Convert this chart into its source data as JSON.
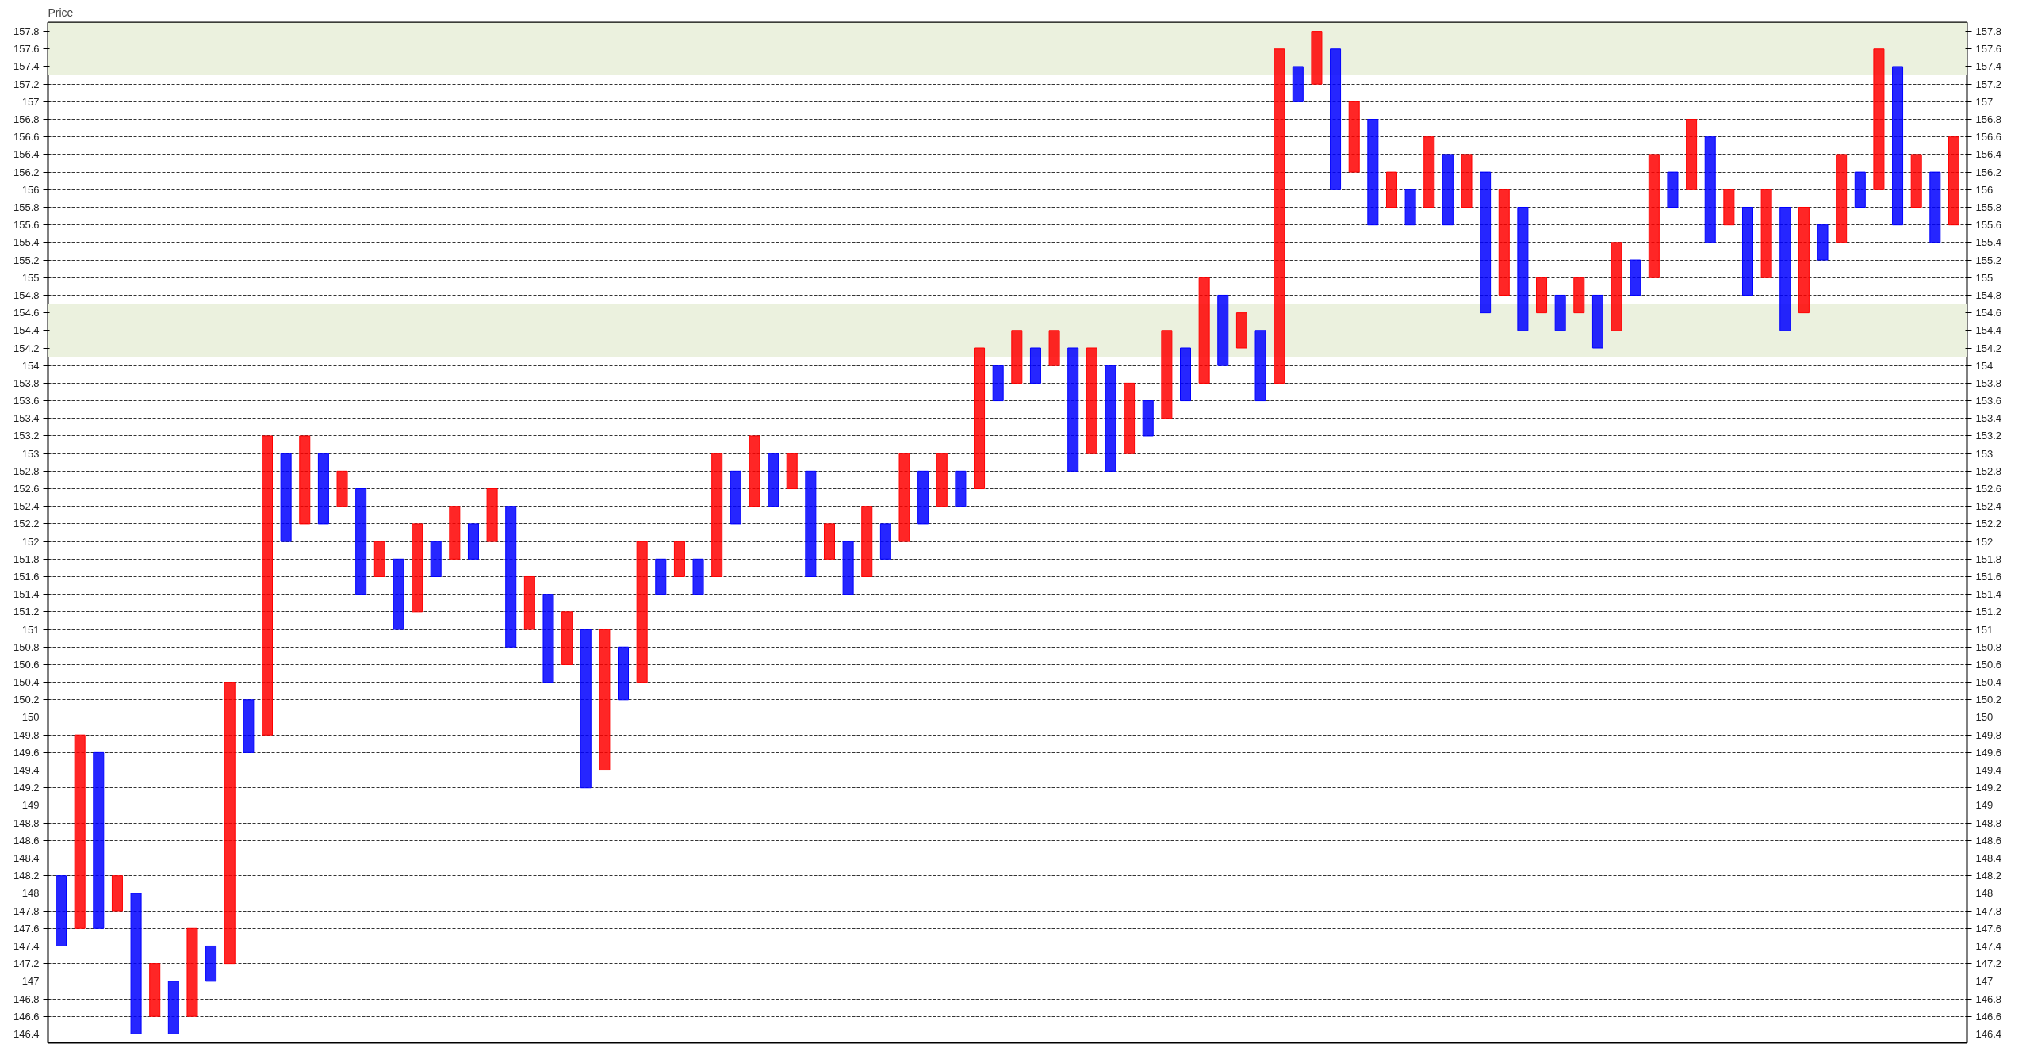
{
  "chart_data": {
    "type": "bar",
    "ylabel": "Price",
    "categories": [
      null,
      null,
      null,
      null,
      null,
      null,
      null,
      null,
      null,
      null,
      null,
      null,
      null,
      null,
      null,
      null,
      null,
      null,
      null,
      null,
      null,
      null,
      null,
      null,
      null,
      null,
      null,
      null,
      null,
      null,
      null,
      null,
      null,
      null,
      null,
      null,
      null,
      null,
      null,
      null,
      null,
      null,
      null,
      null,
      null,
      null,
      null,
      null,
      null,
      null,
      null,
      null,
      null,
      null,
      null,
      null,
      null,
      null,
      null,
      null,
      null,
      null,
      null,
      null,
      null,
      null,
      null,
      null,
      null,
      null,
      null,
      null,
      null,
      null,
      null,
      null,
      null,
      null,
      null,
      null,
      null,
      null,
      null,
      null,
      null,
      null,
      null,
      null,
      null,
      null,
      null,
      null,
      null,
      null,
      null,
      null,
      null,
      null,
      null,
      null,
      null,
      null
    ],
    "series": [
      {
        "color": "#0000ff",
        "values": [
          0.8,
          null,
          2.0,
          null,
          1.6,
          null,
          0.6,
          null,
          0.4,
          null,
          0.6,
          null,
          1.0,
          null,
          0.8,
          null,
          1.2,
          null,
          0.8,
          null,
          0.4,
          null,
          0.4,
          null,
          1.6,
          null,
          1.0,
          null,
          1.8,
          null,
          0.6,
          null,
          0.4,
          null,
          0.4,
          null,
          0.6,
          null,
          0.6,
          null,
          1.2,
          null,
          0.6,
          null,
          0.4,
          null,
          0.6,
          null,
          0.4,
          null,
          0.4,
          null,
          0.4,
          null,
          1.4,
          null,
          1.2,
          null,
          0.4,
          null,
          0.6,
          null,
          0.8,
          null,
          0.8,
          null,
          0.4,
          null,
          1.6,
          null,
          1.2,
          null,
          0.4,
          null,
          0.8,
          null,
          1.6,
          null,
          1.4,
          null,
          0.4,
          null,
          0.6,
          null,
          0.4,
          null,
          0.4,
          null,
          1.2,
          null,
          1.0,
          null,
          1.4,
          null,
          0.4,
          null,
          0.4,
          null,
          1.8,
          null,
          0.8,
          null
        ],
        "base": [
          147.4,
          null,
          147.6,
          null,
          146.4,
          null,
          146.4,
          null,
          147,
          null,
          149.6,
          null,
          152,
          null,
          152.2,
          null,
          151.4,
          null,
          151,
          null,
          151.6,
          null,
          151.8,
          null,
          150.8,
          null,
          150.4,
          null,
          149.2,
          null,
          150.2,
          null,
          151.4,
          null,
          151.4,
          null,
          152.2,
          null,
          152.4,
          null,
          151.6,
          null,
          151.4,
          null,
          151.8,
          null,
          152.2,
          null,
          152.4,
          null,
          153.6,
          null,
          153.8,
          null,
          152.8,
          null,
          152.8,
          null,
          153.2,
          null,
          153.6,
          null,
          154,
          null,
          153.6,
          null,
          157,
          null,
          156,
          null,
          155.6,
          null,
          155.6,
          null,
          155.6,
          null,
          154.6,
          null,
          154.4,
          null,
          154.4,
          null,
          154.2,
          null,
          154.8,
          null,
          155.8,
          null,
          155.4,
          null,
          154.8,
          null,
          154.4,
          null,
          155.2,
          null,
          155.8,
          null,
          155.6,
          null,
          155.4,
          null
        ]
      },
      {
        "color": "#ff0000",
        "values": [
          null,
          2.2,
          null,
          0.4,
          null,
          0.6,
          null,
          1.0,
          null,
          3.2,
          null,
          3.4,
          null,
          1.0,
          null,
          0.4,
          null,
          0.4,
          null,
          1.0,
          null,
          0.6,
          null,
          0.6,
          null,
          0.6,
          null,
          0.6,
          null,
          1.6,
          null,
          1.6,
          null,
          0.4,
          null,
          1.4,
          null,
          0.8,
          null,
          0.4,
          null,
          0.4,
          null,
          0.8,
          null,
          1.0,
          null,
          0.6,
          null,
          1.6,
          null,
          0.6,
          null,
          0.4,
          null,
          1.2,
          null,
          0.8,
          null,
          1.0,
          null,
          1.2,
          null,
          0.4,
          null,
          3.8,
          null,
          0.6,
          null,
          0.8,
          null,
          0.4,
          null,
          0.8,
          null,
          0.6,
          null,
          1.2,
          null,
          0.4,
          null,
          0.4,
          null,
          1.0,
          null,
          1.4,
          null,
          0.8,
          null,
          0.4,
          null,
          1.0,
          null,
          1.2,
          null,
          1.0,
          null,
          1.6,
          null,
          0.6,
          null,
          1.0
        ],
        "base": [
          null,
          147.6,
          null,
          147.8,
          null,
          146.6,
          null,
          146.6,
          null,
          147.2,
          null,
          149.8,
          null,
          152.2,
          null,
          152.4,
          null,
          151.6,
          null,
          151.2,
          null,
          151.8,
          null,
          152,
          null,
          151,
          null,
          150.6,
          null,
          149.4,
          null,
          150.4,
          null,
          151.6,
          null,
          151.6,
          null,
          152.4,
          null,
          152.6,
          null,
          151.8,
          null,
          151.6,
          null,
          152,
          null,
          152.4,
          null,
          152.6,
          null,
          153.8,
          null,
          154,
          null,
          153,
          null,
          153,
          null,
          153.4,
          null,
          153.8,
          null,
          154.2,
          null,
          153.8,
          null,
          157.2,
          null,
          156.2,
          null,
          155.8,
          null,
          155.8,
          null,
          155.8,
          null,
          154.8,
          null,
          154.6,
          null,
          154.6,
          null,
          154.4,
          null,
          155,
          null,
          156,
          null,
          155.6,
          null,
          155,
          null,
          154.6,
          null,
          155.4,
          null,
          156,
          null,
          155.8,
          null,
          155.6
        ]
      }
    ],
    "ylim": [
      146.3,
      157.9
    ],
    "yticks": [
      146.4,
      146.6,
      146.8,
      147,
      147.2,
      147.4,
      147.6,
      147.8,
      148,
      148.2,
      148.4,
      148.6,
      148.8,
      149,
      149.2,
      149.4,
      149.6,
      149.8,
      150,
      150.2,
      150.4,
      150.6,
      150.8,
      151,
      151.2,
      151.4,
      151.6,
      151.8,
      152,
      152.2,
      152.4,
      152.6,
      152.8,
      153,
      153.2,
      153.4,
      153.6,
      153.8,
      154,
      154.2,
      154.4,
      154.6,
      154.8,
      155,
      155.2,
      155.4,
      155.6,
      155.8,
      156,
      156.2,
      156.4,
      156.6,
      156.8,
      157,
      157.2,
      157.4,
      157.6,
      157.8
    ],
    "y2lim": [
      146.3,
      157.9
    ],
    "y2ticks": [
      146.4,
      146.6,
      146.8,
      147,
      147.2,
      147.4,
      147.6,
      147.8,
      148,
      148.2,
      148.4,
      148.6,
      148.8,
      149,
      149.2,
      149.4,
      149.6,
      149.8,
      150,
      150.2,
      150.4,
      150.6,
      150.8,
      151,
      151.2,
      151.4,
      151.6,
      151.8,
      152,
      152.2,
      152.4,
      152.6,
      152.8,
      153,
      153.2,
      153.4,
      153.6,
      153.8,
      154,
      154.2,
      154.4,
      154.6,
      154.8,
      155,
      155.2,
      155.4,
      155.6,
      155.8,
      156,
      156.2,
      156.4,
      156.6,
      156.8,
      157,
      157.2,
      157.4,
      157.6,
      157.8
    ],
    "grid": "y",
    "bands": [
      {
        "axis": "y",
        "from": 157.3,
        "to": 157.9,
        "color": "#ebf1de"
      },
      {
        "axis": "y",
        "from": 154.1,
        "to": 154.7,
        "color": "#ebf1de"
      }
    ]
  }
}
